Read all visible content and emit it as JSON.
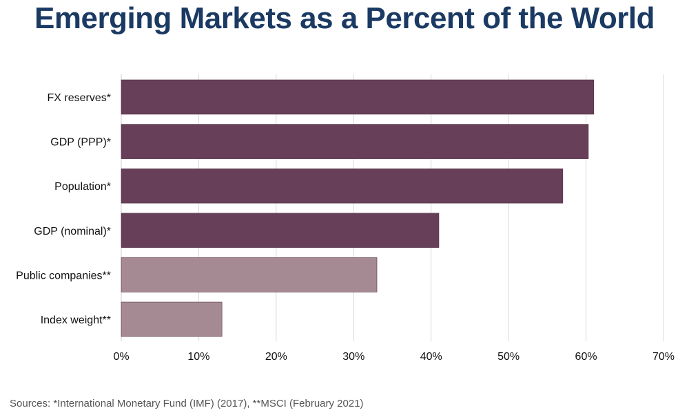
{
  "chart_data": {
    "type": "bar",
    "orientation": "horizontal",
    "title": "Emerging Markets as a Percent of the World",
    "categories": [
      "FX reserves*",
      "GDP (PPP)*",
      "Population*",
      "GDP (nominal)*",
      "Public companies**",
      "Index weight**"
    ],
    "values": [
      61,
      60.3,
      57,
      41,
      33,
      13
    ],
    "value_unit": "%",
    "xlim": [
      0,
      70
    ],
    "x_ticks": [
      "0%",
      "10%",
      "20%",
      "30%",
      "40%",
      "50%",
      "60%",
      "70%"
    ],
    "grid": "vertical",
    "bar_colors": [
      "#673f58",
      "#673f58",
      "#673f58",
      "#673f58",
      "#a68a93",
      "#a68a93"
    ]
  },
  "source_note": "Sources: *International Monetary Fund (IMF) (2017), **MSCI (February 2021)"
}
